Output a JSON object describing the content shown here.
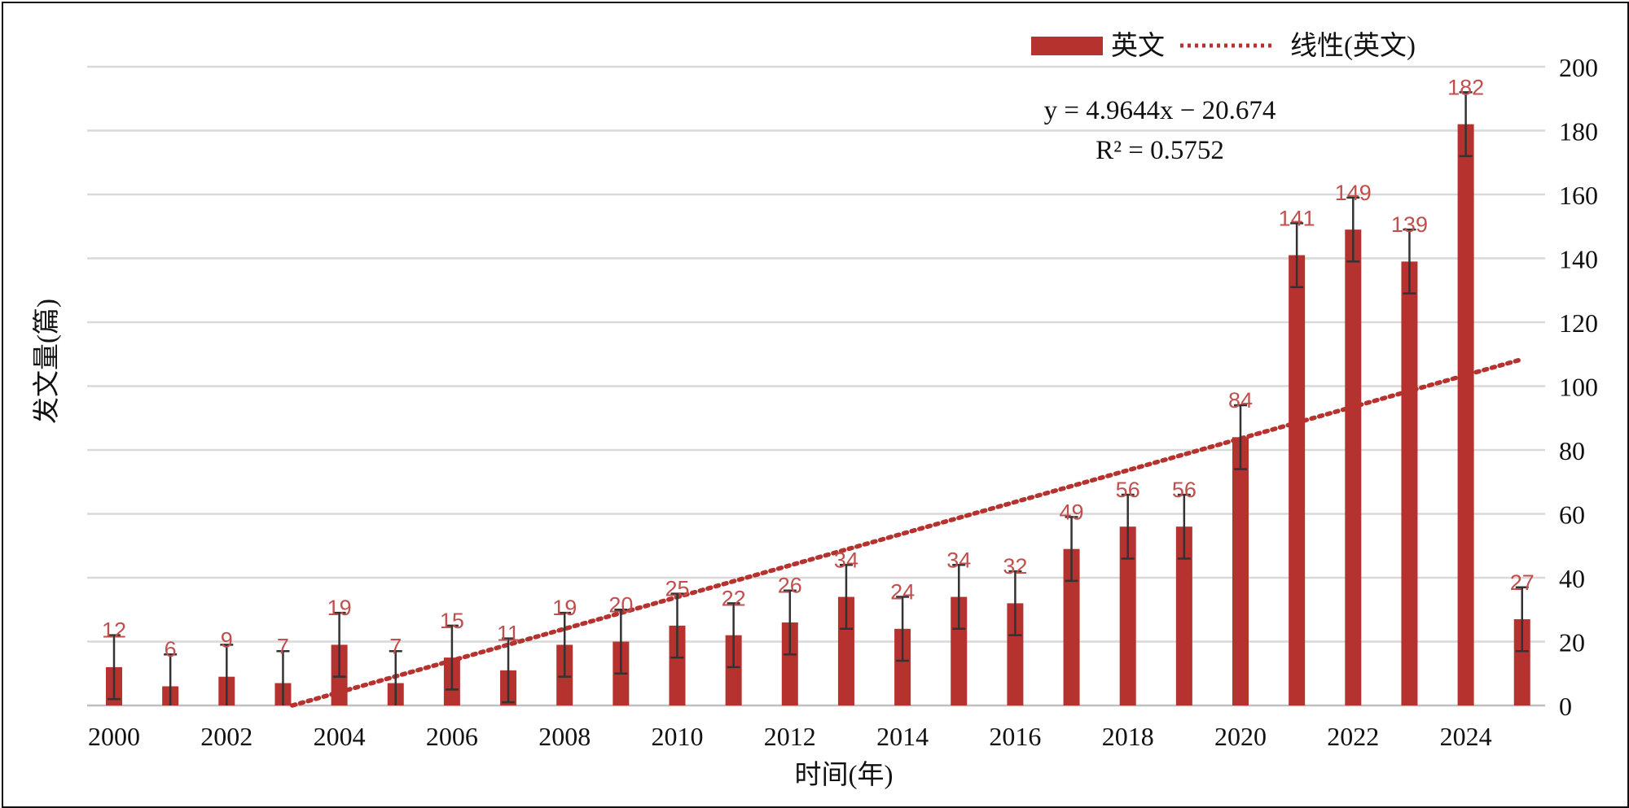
{
  "chart_data": {
    "type": "bar",
    "title": "",
    "xlabel": "时间(年)",
    "ylabel": "发文量(篇)",
    "ylim": [
      0,
      200
    ],
    "yticks": [
      0,
      20,
      40,
      60,
      80,
      100,
      120,
      140,
      160,
      180,
      200
    ],
    "y_axis_side": "right",
    "grid": true,
    "legend_position": "top-right",
    "categories": [
      "2000",
      "2001",
      "2002",
      "2003",
      "2004",
      "2005",
      "2006",
      "2007",
      "2008",
      "2009",
      "2010",
      "2011",
      "2012",
      "2013",
      "2014",
      "2015",
      "2016",
      "2017",
      "2018",
      "2019",
      "2020",
      "2021",
      "2022",
      "2023",
      "2024",
      "2025"
    ],
    "x_tick_labels": [
      "2000",
      "2002",
      "2004",
      "2006",
      "2008",
      "2010",
      "2012",
      "2014",
      "2016",
      "2018",
      "2020",
      "2022",
      "2024"
    ],
    "series": [
      {
        "name": "英文",
        "values": [
          12,
          6,
          9,
          7,
          19,
          7,
          15,
          11,
          19,
          20,
          25,
          22,
          26,
          34,
          24,
          34,
          32,
          49,
          56,
          56,
          84,
          141,
          149,
          139,
          182,
          27
        ],
        "error": 10,
        "color": "#b5322e"
      }
    ],
    "trendline": {
      "name": "线性(英文)",
      "type": "linear",
      "slope": 4.9644,
      "intercept": -20.674,
      "equation": "y = 4.9644x − 20.674",
      "r2_label": "R² = 0.5752",
      "color": "#b5322e"
    },
    "colors": {
      "bar": "#b5322e",
      "data_label": "#c0504d",
      "error_bar": "#333333",
      "grid": "#d9d9d9",
      "text": "#111111"
    }
  }
}
